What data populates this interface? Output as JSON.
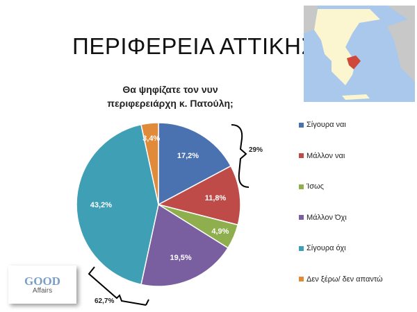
{
  "slide_title": "ΠΕΡΙΦΕΡΕΙΑ ΑΤΤΙΚΗΣ",
  "logo": {
    "line1": "GOOD",
    "line2": "Affairs"
  },
  "map": {
    "description_icon": "greece-map-attica-highlighted",
    "highlight_color": "#d0473c"
  },
  "chart_data": {
    "type": "pie",
    "title_line1": "Θα ψηφίζατε τον νυν",
    "title_line2": "περιφερειάρχη κ. Πατούλη;",
    "categories": [
      "Σίγουρα ναι",
      "Μάλλον ναι",
      "Ίσως",
      "Μάλλον Όχι",
      "Σίγουρα όχι",
      "Δεν ξέρω/ δεν απαντώ"
    ],
    "values": [
      17.2,
      11.8,
      4.9,
      19.5,
      43.2,
      3.4
    ],
    "data_labels": [
      "17,2%",
      "11,8%",
      "4,9%",
      "19,5%",
      "43,2%",
      "3,4%"
    ],
    "colors": [
      "#4a72b0",
      "#be4b48",
      "#8fae4e",
      "#7a5fa0",
      "#3f9fb5",
      "#e08a3a"
    ],
    "legend_position": "right",
    "annotations": [
      {
        "text": "29%",
        "groups": [
          "Σίγουρα ναι",
          "Μάλλον ναι"
        ]
      },
      {
        "text": "62,7%",
        "groups": [
          "Μάλλον Όχι",
          "Σίγουρα όχι"
        ]
      }
    ]
  }
}
